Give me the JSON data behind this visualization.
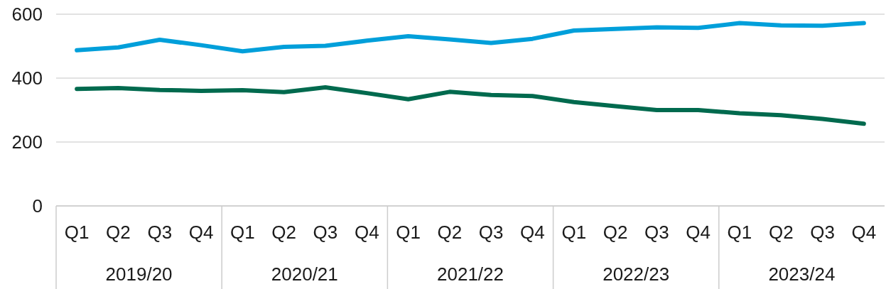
{
  "chart_data": {
    "type": "line",
    "categories": [
      "Q1",
      "Q2",
      "Q3",
      "Q4",
      "Q1",
      "Q2",
      "Q3",
      "Q4",
      "Q1",
      "Q2",
      "Q3",
      "Q4",
      "Q1",
      "Q2",
      "Q3",
      "Q4",
      "Q1",
      "Q2",
      "Q3",
      "Q4"
    ],
    "series": [
      {
        "color": "#009fda",
        "values": [
          487,
          496,
          520,
          503,
          484,
          498,
          501,
          517,
          531,
          521,
          510,
          523,
          549,
          554,
          559,
          557,
          572,
          565,
          564,
          572
        ]
      },
      {
        "color": "#006a4e",
        "values": [
          366,
          369,
          363,
          360,
          362,
          356,
          371,
          353,
          334,
          357,
          347,
          344,
          325,
          312,
          300,
          300,
          290,
          284,
          272,
          257
        ]
      }
    ],
    "ylim": [
      0,
      600
    ],
    "yticks": [
      0,
      200,
      400,
      600
    ],
    "grid": "y",
    "marker": "none",
    "line_style": "solid",
    "annotations": [
      "2019/20",
      "2020/21",
      "2021/22",
      "2022/23",
      "2023/24"
    ]
  }
}
